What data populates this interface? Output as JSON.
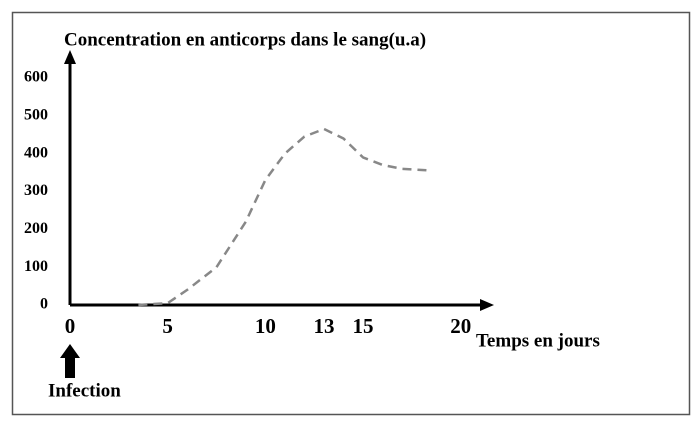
{
  "chart_data": {
    "type": "line",
    "y_label": "Concentration en anticorps dans le sang(u.a)",
    "x_label": "Temps en jours",
    "annotation": "Infection",
    "x": [
      3.5,
      5,
      6,
      7.5,
      9,
      10,
      11,
      12,
      13,
      14,
      15,
      16,
      17,
      18.5
    ],
    "values": [
      0,
      5,
      40,
      100,
      220,
      330,
      400,
      445,
      465,
      440,
      390,
      370,
      360,
      355
    ],
    "color": "#888888",
    "dashed": true,
    "xlim": [
      0,
      21.5
    ],
    "xticks": [
      0,
      5,
      10,
      13,
      15,
      20
    ],
    "ylim": [
      0,
      650
    ],
    "yticks": [
      0,
      100,
      200,
      300,
      400,
      500,
      600
    ],
    "grid": false
  }
}
